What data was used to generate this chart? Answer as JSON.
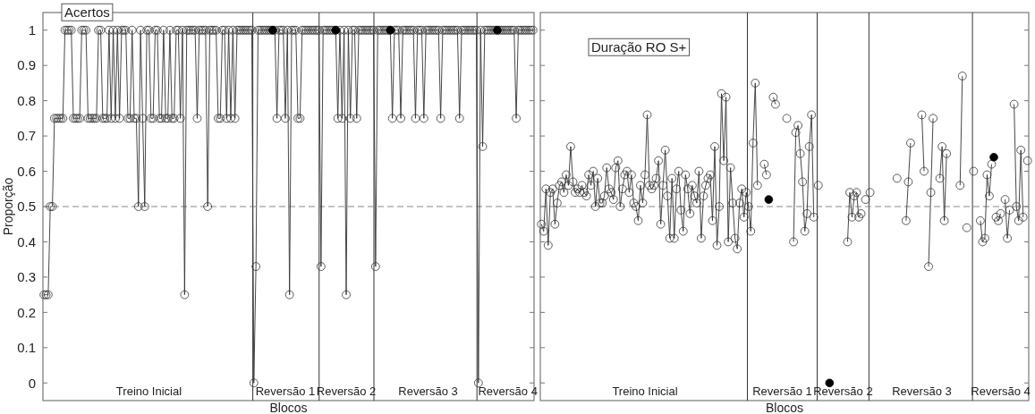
{
  "chart_data": [
    {
      "type": "line",
      "title": "Acertos",
      "xlabel": "Blocos",
      "ylabel": "Proporção",
      "marker": "circle",
      "categories": [
        null,
        null,
        null,
        null,
        null,
        null,
        null,
        null,
        null,
        null,
        null,
        null,
        null,
        null,
        null,
        null,
        null,
        null,
        null,
        null,
        null,
        null,
        null,
        null,
        null,
        null,
        null,
        null,
        null,
        null,
        null,
        null,
        null,
        null,
        null,
        null,
        null,
        null,
        null,
        null,
        null,
        null,
        null,
        null,
        null,
        null,
        null,
        null,
        null,
        null,
        "Treino Inicial",
        null,
        null,
        null,
        null,
        null,
        null,
        null,
        null,
        null,
        null,
        null,
        null,
        null,
        null,
        null,
        null,
        null,
        null,
        null,
        null,
        null,
        null,
        null,
        null,
        null,
        null,
        null,
        null,
        null,
        null,
        null,
        null,
        null,
        null,
        null,
        null,
        null,
        null,
        null,
        null,
        null,
        null,
        null,
        null,
        null,
        null,
        null,
        null,
        null,
        null,
        null,
        null,
        null,
        null,
        null,
        null,
        null,
        null,
        null,
        null,
        null,
        null,
        null,
        null,
        "Reversão 1",
        null,
        null,
        null,
        null,
        null,
        null,
        null,
        null,
        null,
        null,
        null,
        null,
        null,
        null,
        null,
        null,
        null,
        null,
        null,
        null,
        null,
        null,
        null,
        null,
        null,
        null,
        null,
        null,
        "Reversão 2",
        null,
        null,
        null,
        null,
        null,
        null,
        null,
        null,
        null,
        null,
        null,
        null,
        null,
        null,
        null,
        null,
        null,
        null,
        null,
        null,
        null,
        null,
        null,
        null,
        null,
        null,
        null,
        null,
        null,
        null,
        null,
        null,
        null,
        null,
        null,
        null,
        null,
        null,
        "Reversão 3",
        null,
        null,
        null,
        null,
        null,
        null,
        null,
        null,
        null,
        null,
        null,
        null,
        null,
        null,
        null,
        null,
        null,
        null,
        null,
        null,
        null,
        null,
        null,
        null,
        null,
        null,
        null,
        null,
        null,
        null,
        null,
        null,
        null,
        null,
        null,
        null,
        null,
        "Reversão 4",
        null,
        null,
        null,
        null,
        null,
        null,
        null,
        null,
        null,
        null,
        null,
        null
      ],
      "ylim": [
        -0.05,
        1.05
      ],
      "yticks": [
        0,
        0.1,
        0.2,
        0.3,
        0.4,
        0.5,
        0.6,
        0.7,
        0.8,
        0.9,
        1
      ],
      "series": [
        {
          "color": "#333333",
          "values": [
            0.25,
            0.25,
            0.25,
            0.5,
            0.5,
            0.75,
            0.75,
            0.75,
            0.75,
            0.75,
            1,
            1,
            1,
            1,
            0.75,
            0.75,
            0.75,
            0.75,
            1,
            1,
            1,
            0.75,
            0.75,
            0.75,
            0.75,
            0.75,
            1,
            1,
            0.75,
            0.75,
            0.75,
            1,
            0.75,
            1,
            0.75,
            1,
            0.75,
            1,
            1,
            1,
            0.75,
            0.75,
            1,
            0.75,
            0.75,
            0.5,
            1,
            0.75,
            0.5,
            1,
            1,
            0.75,
            0.75,
            1,
            1,
            0.75,
            0.75,
            1,
            0.75,
            0.75,
            1,
            0.75,
            0.75,
            1,
            1,
            0.75,
            1,
            0.25,
            1,
            1,
            1,
            1,
            1,
            0.75,
            1,
            1,
            1,
            1,
            0.5,
            1,
            1,
            1,
            1,
            0.75,
            0.75,
            1,
            1,
            0.75,
            1,
            0.75,
            1,
            0.75,
            1,
            1,
            1,
            1,
            1,
            1,
            1,
            1,
            0,
            0.33,
            1,
            1,
            1,
            1,
            1,
            1,
            1,
            1,
            1,
            0.75,
            1,
            1,
            1,
            0.75,
            1,
            0.25,
            1,
            1,
            1,
            0.75,
            0.75,
            1,
            1,
            1,
            1,
            1,
            1,
            1,
            1,
            1,
            0.33,
            1,
            1,
            1,
            1,
            1,
            1,
            1,
            0.75,
            1,
            0.75,
            1,
            0.25,
            1,
            0.75,
            1,
            1,
            0.75,
            1,
            1,
            1,
            1,
            1,
            1,
            1,
            1,
            0.33,
            1,
            1,
            1,
            1,
            1,
            1,
            1,
            0.75,
            1,
            1,
            1,
            0.75,
            1,
            1,
            1,
            1,
            1,
            1,
            0.75,
            1,
            1,
            1,
            0.75,
            1,
            1,
            1,
            1,
            1,
            1,
            1,
            0.75,
            1,
            1,
            1,
            1,
            1,
            1,
            1,
            1,
            0.75,
            1,
            1,
            1,
            1,
            1,
            1,
            1,
            1,
            0,
            1,
            0.67,
            1,
            1,
            1,
            1,
            1,
            1,
            1,
            1,
            1,
            1,
            1,
            1,
            1,
            1,
            1,
            0.75,
            1,
            1,
            1,
            1,
            1,
            1,
            1,
            1
          ]
        },
        {
          "type": "scatter",
          "color": "#000000",
          "values": [
            null,
            null,
            null,
            null,
            null,
            null,
            null,
            null,
            null,
            null,
            null,
            null,
            null,
            null,
            null,
            null,
            null,
            null,
            null,
            null,
            null,
            null,
            null,
            null,
            null,
            null,
            null,
            null,
            null,
            null,
            null,
            null,
            null,
            null,
            null,
            null,
            null,
            null,
            null,
            null,
            null,
            null,
            null,
            null,
            null,
            null,
            null,
            null,
            null,
            null,
            null,
            null,
            null,
            null,
            null,
            null,
            null,
            null,
            null,
            null,
            null,
            null,
            null,
            null,
            null,
            null,
            null,
            null,
            null,
            null,
            null,
            null,
            null,
            null,
            null,
            null,
            null,
            null,
            null,
            null,
            null,
            null,
            null,
            null,
            null,
            null,
            null,
            null,
            null,
            null,
            null,
            null,
            null,
            null,
            null,
            null,
            null,
            null,
            null,
            null,
            null,
            null,
            null,
            null,
            null,
            null,
            null,
            null,
            null,
            1,
            null,
            null,
            null,
            null,
            null,
            null,
            null,
            null,
            null,
            null,
            null,
            null,
            null,
            null,
            null,
            null,
            null,
            null,
            null,
            null,
            null,
            null,
            null,
            null,
            null,
            null,
            null,
            null,
            null,
            1,
            null,
            null,
            null,
            null,
            null,
            null,
            null,
            null,
            null,
            null,
            null,
            null,
            null,
            null,
            null,
            null,
            null,
            null,
            null,
            null,
            null,
            null,
            null,
            null,
            null,
            1,
            null,
            null,
            null,
            null,
            null,
            null,
            null,
            null,
            null,
            null,
            null,
            null,
            null,
            null,
            null,
            null,
            null,
            null,
            null,
            null,
            null,
            null,
            null,
            null,
            null,
            null,
            null,
            null,
            null,
            null,
            null,
            null,
            null,
            null,
            null,
            null,
            null,
            null,
            null,
            null,
            null,
            null,
            null,
            null,
            null,
            null,
            null,
            null,
            null,
            null,
            1,
            null,
            null,
            null,
            null,
            null,
            null,
            null,
            null,
            null,
            null,
            null,
            null,
            null,
            null,
            null,
            null,
            null
          ]
        }
      ],
      "ref_lines": [
        {
          "axis": "y",
          "value": 0.5,
          "color": "#888888",
          "line_style": "dashed"
        }
      ]
    },
    {
      "type": "line",
      "title": "Duração RO S+",
      "xlabel": "Blocos",
      "marker": "circle",
      "tick_labels": "x",
      "categories": [
        null,
        null,
        null,
        null,
        null,
        null,
        null,
        null,
        null,
        null,
        null,
        null,
        null,
        null,
        null,
        null,
        null,
        null,
        null,
        null,
        null,
        null,
        null,
        null,
        null,
        null,
        null,
        null,
        null,
        null,
        null,
        null,
        null,
        null,
        null,
        null,
        null,
        null,
        null,
        null,
        null,
        null,
        null,
        null,
        null,
        null,
        "Treino Inicial",
        null,
        null,
        null,
        null,
        null,
        null,
        null,
        null,
        null,
        null,
        null,
        null,
        null,
        null,
        null,
        null,
        null,
        null,
        null,
        null,
        null,
        null,
        null,
        null,
        null,
        null,
        null,
        null,
        null,
        null,
        null,
        null,
        null,
        null,
        null,
        null,
        null,
        null,
        null,
        null,
        null,
        null,
        null,
        null,
        null,
        null,
        null,
        null,
        null,
        null,
        null,
        null,
        null,
        null,
        null,
        null,
        null,
        null,
        null,
        null,
        "Reversão 1",
        null,
        null,
        null,
        null,
        null,
        null,
        null,
        null,
        null,
        null,
        null,
        null,
        null,
        null,
        null,
        null,
        null,
        null,
        null,
        null,
        null,
        null,
        null,
        null,
        null,
        null,
        "Reversão 2",
        null,
        null,
        null,
        null,
        null,
        null,
        null,
        null,
        null,
        null,
        null,
        null,
        null,
        null,
        null,
        null,
        null,
        null,
        null,
        null,
        null,
        null,
        null,
        null,
        null,
        null,
        null,
        null,
        null,
        null,
        null,
        null,
        null,
        null,
        "Reversão 3",
        null,
        null,
        null,
        null,
        null,
        null,
        null,
        null,
        null,
        null,
        null,
        null,
        null,
        null,
        null,
        null,
        null,
        null,
        null,
        null,
        null,
        null,
        null,
        null,
        null,
        null,
        null,
        null,
        null,
        null,
        null,
        null,
        null,
        null,
        "Reversão 4",
        null,
        null,
        null,
        null,
        null,
        null,
        null,
        null,
        null,
        null,
        null,
        null
      ],
      "ylim": [
        -0.05,
        1.05
      ],
      "yticks": [
        0,
        0.1,
        0.2,
        0.3,
        0.4,
        0.5,
        0.6,
        0.7,
        0.8,
        0.9,
        1
      ],
      "series": [
        {
          "color": "#333333",
          "values": [
            0.45,
            0.43,
            0.55,
            0.39,
            0.54,
            0.55,
            0.45,
            0.51,
            0.56,
            0.57,
            0.54,
            0.59,
            0.56,
            0.67,
            0.57,
            0.54,
            0.55,
            0.54,
            0.56,
            0.54,
            0.53,
            0.59,
            0.56,
            0.6,
            0.5,
            0.58,
            0.51,
            0.51,
            0.53,
            0.61,
            0.55,
            0.54,
            0.52,
            0.61,
            0.63,
            0.5,
            0.55,
            0.59,
            0.6,
            0.54,
            0.59,
            0.51,
            0.5,
            0.46,
            0.56,
            0.51,
            0.59,
            0.76,
            0.56,
            0.55,
            0.56,
            0.58,
            0.63,
            0.45,
            0.56,
            0.66,
            0.53,
            0.41,
            0.58,
            0.41,
            0.55,
            0.6,
            0.49,
            0.43,
            0.59,
            0.55,
            0.48,
            0.56,
            0.53,
            0.51,
            0.6,
            0.41,
            0.53,
            0.56,
            0.58,
            0.59,
            0.46,
            0.67,
            0.39,
            0.5,
            0.82,
            0.63,
            0.81,
            0.4,
            0.61,
            0.51,
            0.41,
            0.38,
            0.51,
            0.55,
            0.47,
            0.54,
            0.5,
            0.43,
            0.68,
            0.85,
            0.56,
            null,
            null,
            0.62,
            0.59,
            null,
            null,
            0.81,
            0.79,
            null,
            null,
            null,
            null,
            0.75,
            null,
            null,
            0.4,
            0.71,
            0.73,
            0.65,
            0.57,
            0.43,
            0.48,
            0.67,
            0.76,
            0.47,
            null,
            0.56,
            null,
            null,
            null,
            null,
            null,
            null,
            null,
            null,
            null,
            null,
            null,
            null,
            0.4,
            0.54,
            0.47,
            0.53,
            0.54,
            0.47,
            0.48,
            null,
            0.52,
            null,
            0.54,
            null,
            null,
            null,
            null,
            null,
            null,
            null,
            null,
            null,
            null,
            null,
            0.58,
            null,
            null,
            null,
            0.46,
            0.57,
            0.68,
            null,
            null,
            null,
            null,
            0.76,
            0.6,
            null,
            0.33,
            0.54,
            0.75,
            null,
            null,
            0.58,
            0.67,
            0.46,
            0.65,
            null,
            null,
            null,
            null,
            null,
            0.56,
            0.87,
            null,
            0.44,
            null,
            null,
            0.6,
            null,
            null,
            0.46,
            0.4,
            0.41,
            0.59,
            0.53,
            0.62,
            null,
            0.47,
            0.46,
            0.48,
            null,
            0.52,
            0.41,
            0.49,
            null,
            0.79,
            0.5,
            0.46,
            0.66,
            0.47,
            null,
            0.63
          ]
        },
        {
          "type": "scatter",
          "color": "#000000",
          "values": [
            null,
            null,
            null,
            null,
            null,
            null,
            null,
            null,
            null,
            null,
            null,
            null,
            null,
            null,
            null,
            null,
            null,
            null,
            null,
            null,
            null,
            null,
            null,
            null,
            null,
            null,
            null,
            null,
            null,
            null,
            null,
            null,
            null,
            null,
            null,
            null,
            null,
            null,
            null,
            null,
            null,
            null,
            null,
            null,
            null,
            null,
            null,
            null,
            null,
            null,
            null,
            null,
            null,
            null,
            null,
            null,
            null,
            null,
            null,
            null,
            null,
            null,
            null,
            null,
            null,
            null,
            null,
            null,
            null,
            null,
            null,
            null,
            null,
            null,
            null,
            null,
            null,
            null,
            null,
            null,
            null,
            null,
            null,
            null,
            null,
            null,
            null,
            null,
            null,
            null,
            null,
            null,
            null,
            null,
            null,
            null,
            null,
            null,
            null,
            null,
            null,
            0.52,
            null,
            null,
            null,
            null,
            null,
            null,
            null,
            null,
            null,
            null,
            null,
            null,
            null,
            null,
            null,
            null,
            null,
            null,
            null,
            null,
            null,
            null,
            null,
            null,
            null,
            null,
            0,
            null,
            null,
            null,
            null,
            null,
            null,
            null,
            null,
            null,
            null,
            null,
            null,
            null,
            null,
            null,
            null,
            null,
            null,
            null,
            null,
            null,
            null,
            null,
            null,
            null,
            null,
            null,
            null,
            null,
            null,
            null,
            null,
            null,
            null,
            null,
            null,
            null,
            null,
            null,
            null,
            null,
            null,
            null,
            null,
            null,
            null,
            null,
            null,
            null,
            null,
            null,
            null,
            null,
            null,
            null,
            null,
            null,
            null,
            null,
            null,
            null,
            null,
            null,
            null,
            null,
            null,
            null,
            null,
            null,
            null,
            null,
            null,
            0.64,
            null,
            null,
            null,
            null,
            null,
            null,
            null,
            null,
            null,
            null,
            null,
            null,
            null,
            null,
            null
          ]
        }
      ],
      "ref_lines": [
        {
          "axis": "y",
          "value": 0.5,
          "color": "#888888",
          "line_style": "dashed"
        }
      ]
    }
  ]
}
